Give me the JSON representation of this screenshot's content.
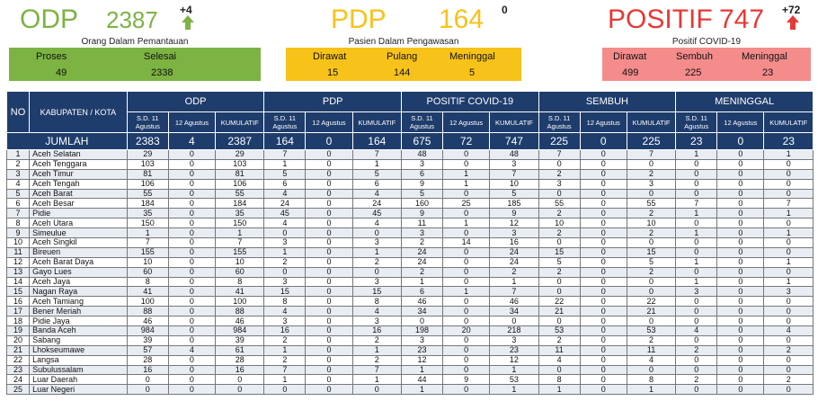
{
  "odp": {
    "label": "ODP",
    "count": "2387",
    "delta": "+4",
    "desc": "Orang Dalam Pemantauan",
    "col1": "Proses",
    "col2": "Selesai",
    "val1": "49",
    "val2": "2338"
  },
  "pdp": {
    "label": "PDP",
    "count": "164",
    "delta": "0",
    "desc": "Pasien Dalam Pengawasan",
    "col1": "Dirawat",
    "col2": "Pulang",
    "col3": "Meninggal",
    "val1": "15",
    "val2": "144",
    "val3": "5"
  },
  "positif": {
    "label": "POSITIF",
    "count": "747",
    "delta": "+72",
    "desc": "Positif COVID-19",
    "col1": "Dirawat",
    "col2": "Sembuh",
    "col3": "Meninggal",
    "val1": "499",
    "val2": "225",
    "val3": "23"
  },
  "colors": {
    "odp": "#7cb342",
    "pdp": "#f7c21a",
    "positif": "#e53935",
    "header": "#1f3d6c"
  },
  "table": {
    "h_no": "NO",
    "h_kab": "KABUPATEN / KOTA",
    "g_odp": "ODP",
    "g_pdp": "PDP",
    "g_pos": "POSITIF COVID-19",
    "g_sembuh": "SEMBUH",
    "g_meninggal": "MENINGGAL",
    "sub1": "S.D. 11 Agustus",
    "sub2": "12 Agustus",
    "sub3": "KUMULATIF",
    "total": [
      "JUMLAH",
      "2383",
      "4",
      "2387",
      "164",
      "0",
      "164",
      "675",
      "72",
      "747",
      "225",
      "0",
      "225",
      "23",
      "0",
      "23"
    ],
    "rows": [
      [
        "1",
        "Aceh Selatan",
        "29",
        "0",
        "29",
        "7",
        "0",
        "7",
        "48",
        "0",
        "48",
        "7",
        "0",
        "7",
        "1",
        "0",
        "1"
      ],
      [
        "2",
        "Aceh Tenggara",
        "103",
        "0",
        "103",
        "1",
        "0",
        "1",
        "3",
        "0",
        "3",
        "0",
        "0",
        "0",
        "0",
        "0",
        "0"
      ],
      [
        "3",
        "Aceh Timur",
        "81",
        "0",
        "81",
        "5",
        "0",
        "5",
        "6",
        "1",
        "7",
        "2",
        "0",
        "2",
        "0",
        "0",
        "0"
      ],
      [
        "4",
        "Aceh Tengah",
        "106",
        "0",
        "106",
        "6",
        "0",
        "6",
        "9",
        "1",
        "10",
        "3",
        "0",
        "3",
        "0",
        "0",
        "0"
      ],
      [
        "5",
        "Aceh Barat",
        "55",
        "0",
        "55",
        "4",
        "0",
        "4",
        "5",
        "0",
        "5",
        "0",
        "0",
        "0",
        "0",
        "0",
        "0"
      ],
      [
        "6",
        "Aceh Besar",
        "184",
        "0",
        "184",
        "24",
        "0",
        "24",
        "160",
        "25",
        "185",
        "55",
        "0",
        "55",
        "7",
        "0",
        "7"
      ],
      [
        "7",
        "Pidie",
        "35",
        "0",
        "35",
        "45",
        "0",
        "45",
        "9",
        "0",
        "9",
        "2",
        "0",
        "2",
        "1",
        "0",
        "1"
      ],
      [
        "8",
        "Aceh Utara",
        "150",
        "0",
        "150",
        "4",
        "0",
        "4",
        "11",
        "1",
        "12",
        "10",
        "0",
        "10",
        "0",
        "0",
        "0"
      ],
      [
        "9",
        "Simeulue",
        "1",
        "0",
        "1",
        "0",
        "0",
        "0",
        "3",
        "0",
        "3",
        "2",
        "0",
        "2",
        "1",
        "0",
        "1"
      ],
      [
        "10",
        "Aceh Singkil",
        "7",
        "0",
        "7",
        "3",
        "0",
        "3",
        "2",
        "14",
        "16",
        "0",
        "0",
        "0",
        "0",
        "0",
        "0"
      ],
      [
        "11",
        "Bireuen",
        "155",
        "0",
        "155",
        "1",
        "0",
        "1",
        "24",
        "0",
        "24",
        "15",
        "0",
        "15",
        "0",
        "0",
        "0"
      ],
      [
        "12",
        "Aceh Barat Daya",
        "10",
        "0",
        "10",
        "2",
        "0",
        "2",
        "24",
        "0",
        "24",
        "5",
        "0",
        "5",
        "1",
        "0",
        "1"
      ],
      [
        "13",
        "Gayo Lues",
        "60",
        "0",
        "60",
        "0",
        "0",
        "0",
        "2",
        "0",
        "2",
        "2",
        "0",
        "2",
        "0",
        "0",
        "0"
      ],
      [
        "14",
        "Aceh Jaya",
        "8",
        "0",
        "8",
        "3",
        "0",
        "3",
        "1",
        "0",
        "1",
        "0",
        "0",
        "0",
        "1",
        "0",
        "1"
      ],
      [
        "15",
        "Nagan Raya",
        "41",
        "0",
        "41",
        "15",
        "0",
        "15",
        "6",
        "1",
        "7",
        "0",
        "0",
        "0",
        "3",
        "0",
        "3"
      ],
      [
        "16",
        "Aceh Tamiang",
        "100",
        "0",
        "100",
        "8",
        "0",
        "8",
        "46",
        "0",
        "46",
        "22",
        "0",
        "22",
        "0",
        "0",
        "0"
      ],
      [
        "17",
        "Bener Meriah",
        "88",
        "0",
        "88",
        "4",
        "0",
        "4",
        "34",
        "0",
        "34",
        "21",
        "0",
        "21",
        "0",
        "0",
        "0"
      ],
      [
        "18",
        "Pidie Jaya",
        "46",
        "0",
        "46",
        "3",
        "0",
        "3",
        "0",
        "0",
        "0",
        "0",
        "0",
        "0",
        "0",
        "0",
        "0"
      ],
      [
        "19",
        "Banda Aceh",
        "984",
        "0",
        "984",
        "16",
        "0",
        "16",
        "198",
        "20",
        "218",
        "53",
        "0",
        "53",
        "4",
        "0",
        "4"
      ],
      [
        "20",
        "Sabang",
        "39",
        "0",
        "39",
        "2",
        "0",
        "2",
        "3",
        "0",
        "3",
        "2",
        "0",
        "2",
        "0",
        "0",
        "0"
      ],
      [
        "21",
        "Lhokseumawe",
        "57",
        "4",
        "61",
        "1",
        "0",
        "1",
        "23",
        "0",
        "23",
        "11",
        "0",
        "11",
        "2",
        "0",
        "2"
      ],
      [
        "22",
        "Langsa",
        "28",
        "0",
        "28",
        "2",
        "0",
        "2",
        "12",
        "0",
        "12",
        "4",
        "0",
        "4",
        "0",
        "0",
        "0"
      ],
      [
        "23",
        "Subulussalam",
        "16",
        "0",
        "16",
        "7",
        "0",
        "7",
        "1",
        "0",
        "1",
        "0",
        "0",
        "0",
        "0",
        "0",
        "0"
      ],
      [
        "24",
        "Luar Daerah",
        "0",
        "0",
        "0",
        "1",
        "0",
        "1",
        "44",
        "9",
        "53",
        "8",
        "0",
        "8",
        "2",
        "0",
        "2"
      ],
      [
        "25",
        "Luar Negeri",
        "0",
        "0",
        "0",
        "0",
        "0",
        "0",
        "1",
        "0",
        "1",
        "1",
        "0",
        "1",
        "0",
        "0",
        "0"
      ]
    ]
  }
}
